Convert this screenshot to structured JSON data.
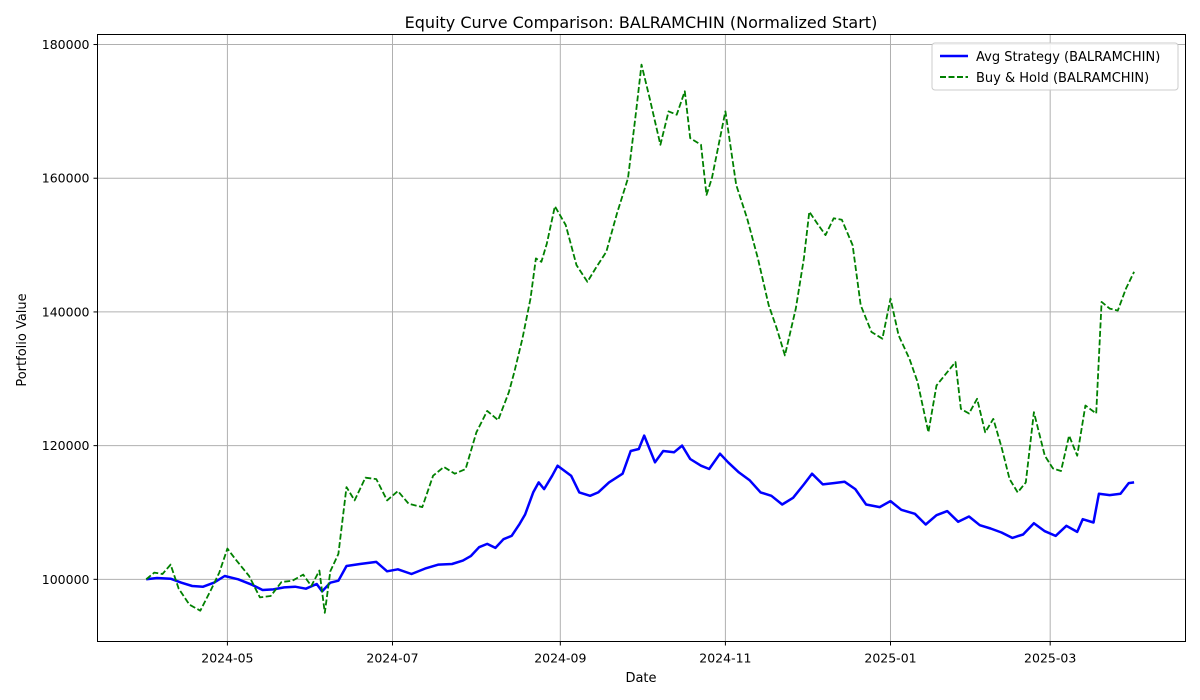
{
  "chart_data": {
    "type": "line",
    "title": "Equity Curve Comparison: BALRAMCHIN (Normalized Start)",
    "xlabel": "Date",
    "ylabel": "Portfolio Value",
    "x_start": "2024-04-01",
    "x_end": "2025-04-01",
    "xlim": [
      "2024-03-14",
      "2025-04-20"
    ],
    "ylim": [
      90700,
      181500
    ],
    "x_ticks": [
      {
        "date": "2024-05-01",
        "label": "2024-05"
      },
      {
        "date": "2024-07-01",
        "label": "2024-07"
      },
      {
        "date": "2024-09-01",
        "label": "2024-09"
      },
      {
        "date": "2024-11-01",
        "label": "2024-11"
      },
      {
        "date": "2025-01-01",
        "label": "2025-01"
      },
      {
        "date": "2025-03-01",
        "label": "2025-03"
      }
    ],
    "y_ticks": [
      {
        "value": 100000,
        "label": "100000"
      },
      {
        "value": 120000,
        "label": "120000"
      },
      {
        "value": 140000,
        "label": "140000"
      },
      {
        "value": 160000,
        "label": "160000"
      },
      {
        "value": 180000,
        "label": "180000"
      }
    ],
    "grid": true,
    "legend_position": "top-right",
    "series": [
      {
        "name": "Avg Strategy (BALRAMCHIN)",
        "color": "#0000ff",
        "style": "solid",
        "points": [
          [
            "2024-04-01",
            100000
          ],
          [
            "2024-04-05",
            100200
          ],
          [
            "2024-04-10",
            100100
          ],
          [
            "2024-04-14",
            99500
          ],
          [
            "2024-04-18",
            99000
          ],
          [
            "2024-04-22",
            98900
          ],
          [
            "2024-04-26",
            99500
          ],
          [
            "2024-04-30",
            100500
          ],
          [
            "2024-05-05",
            100000
          ],
          [
            "2024-05-10",
            99200
          ],
          [
            "2024-05-14",
            98400
          ],
          [
            "2024-05-18",
            98500
          ],
          [
            "2024-05-22",
            98800
          ],
          [
            "2024-05-26",
            98900
          ],
          [
            "2024-05-30",
            98600
          ],
          [
            "2024-06-03",
            99300
          ],
          [
            "2024-06-05",
            98200
          ],
          [
            "2024-06-08",
            99500
          ],
          [
            "2024-06-11",
            99800
          ],
          [
            "2024-06-14",
            102000
          ],
          [
            "2024-06-19",
            102300
          ],
          [
            "2024-06-25",
            102600
          ],
          [
            "2024-06-29",
            101200
          ],
          [
            "2024-07-03",
            101500
          ],
          [
            "2024-07-08",
            100800
          ],
          [
            "2024-07-13",
            101600
          ],
          [
            "2024-07-18",
            102200
          ],
          [
            "2024-07-23",
            102300
          ],
          [
            "2024-07-27",
            102800
          ],
          [
            "2024-07-30",
            103500
          ],
          [
            "2024-08-02",
            104800
          ],
          [
            "2024-08-05",
            105300
          ],
          [
            "2024-08-08",
            104700
          ],
          [
            "2024-08-11",
            106000
          ],
          [
            "2024-08-14",
            106500
          ],
          [
            "2024-08-17",
            108300
          ],
          [
            "2024-08-19",
            109700
          ],
          [
            "2024-08-22",
            113000
          ],
          [
            "2024-08-24",
            114500
          ],
          [
            "2024-08-26",
            113500
          ],
          [
            "2024-08-29",
            115500
          ],
          [
            "2024-08-31",
            117000
          ],
          [
            "2024-09-05",
            115500
          ],
          [
            "2024-09-08",
            113000
          ],
          [
            "2024-09-12",
            112500
          ],
          [
            "2024-09-15",
            113000
          ],
          [
            "2024-09-19",
            114500
          ],
          [
            "2024-09-24",
            115800
          ],
          [
            "2024-09-27",
            119200
          ],
          [
            "2024-09-30",
            119500
          ],
          [
            "2024-10-02",
            121500
          ],
          [
            "2024-10-06",
            117500
          ],
          [
            "2024-10-09",
            119200
          ],
          [
            "2024-10-13",
            119000
          ],
          [
            "2024-10-16",
            120000
          ],
          [
            "2024-10-19",
            118000
          ],
          [
            "2024-10-23",
            117000
          ],
          [
            "2024-10-26",
            116500
          ],
          [
            "2024-10-30",
            118800
          ],
          [
            "2024-11-02",
            117500
          ],
          [
            "2024-11-06",
            116000
          ],
          [
            "2024-11-10",
            114800
          ],
          [
            "2024-11-14",
            113000
          ],
          [
            "2024-11-18",
            112500
          ],
          [
            "2024-11-22",
            111200
          ],
          [
            "2024-11-26",
            112200
          ],
          [
            "2024-11-30",
            114200
          ],
          [
            "2024-12-03",
            115800
          ],
          [
            "2024-12-07",
            114200
          ],
          [
            "2024-12-11",
            114400
          ],
          [
            "2024-12-15",
            114600
          ],
          [
            "2024-12-19",
            113500
          ],
          [
            "2024-12-23",
            111200
          ],
          [
            "2024-12-28",
            110800
          ],
          [
            "2025-01-01",
            111700
          ],
          [
            "2025-01-05",
            110400
          ],
          [
            "2025-01-10",
            109800
          ],
          [
            "2025-01-14",
            108200
          ],
          [
            "2025-01-18",
            109600
          ],
          [
            "2025-01-22",
            110200
          ],
          [
            "2025-01-26",
            108600
          ],
          [
            "2025-01-30",
            109400
          ],
          [
            "2025-02-03",
            108100
          ],
          [
            "2025-02-07",
            107600
          ],
          [
            "2025-02-11",
            107000
          ],
          [
            "2025-02-15",
            106200
          ],
          [
            "2025-02-19",
            106700
          ],
          [
            "2025-02-23",
            108400
          ],
          [
            "2025-02-27",
            107200
          ],
          [
            "2025-03-03",
            106500
          ],
          [
            "2025-03-07",
            108000
          ],
          [
            "2025-03-11",
            107100
          ],
          [
            "2025-03-13",
            109000
          ],
          [
            "2025-03-17",
            108500
          ],
          [
            "2025-03-19",
            112800
          ],
          [
            "2025-03-23",
            112600
          ],
          [
            "2025-03-27",
            112800
          ],
          [
            "2025-03-30",
            114400
          ],
          [
            "2025-04-01",
            114500
          ]
        ]
      },
      {
        "name": "Buy & Hold (BALRAMCHIN)",
        "color": "#008000",
        "style": "dashed",
        "points": [
          [
            "2024-04-01",
            100000
          ],
          [
            "2024-04-04",
            101000
          ],
          [
            "2024-04-07",
            100800
          ],
          [
            "2024-04-10",
            102200
          ],
          [
            "2024-04-13",
            98600
          ],
          [
            "2024-04-17",
            96200
          ],
          [
            "2024-04-21",
            95300
          ],
          [
            "2024-04-25",
            98500
          ],
          [
            "2024-04-28",
            101000
          ],
          [
            "2024-05-01",
            104600
          ],
          [
            "2024-05-04",
            103000
          ],
          [
            "2024-05-09",
            100500
          ],
          [
            "2024-05-13",
            97300
          ],
          [
            "2024-05-17",
            97500
          ],
          [
            "2024-05-21",
            99600
          ],
          [
            "2024-05-25",
            99800
          ],
          [
            "2024-05-29",
            100700
          ],
          [
            "2024-06-01",
            99000
          ],
          [
            "2024-06-04",
            101300
          ],
          [
            "2024-06-06",
            95000
          ],
          [
            "2024-06-08",
            101200
          ],
          [
            "2024-06-11",
            103800
          ],
          [
            "2024-06-14",
            113800
          ],
          [
            "2024-06-17",
            111800
          ],
          [
            "2024-06-21",
            115200
          ],
          [
            "2024-06-25",
            115000
          ],
          [
            "2024-06-29",
            111800
          ],
          [
            "2024-07-03",
            113200
          ],
          [
            "2024-07-07",
            111300
          ],
          [
            "2024-07-12",
            110800
          ],
          [
            "2024-07-16",
            115500
          ],
          [
            "2024-07-20",
            116800
          ],
          [
            "2024-07-24",
            115800
          ],
          [
            "2024-07-28",
            116500
          ],
          [
            "2024-08-01",
            122000
          ],
          [
            "2024-08-05",
            125200
          ],
          [
            "2024-08-09",
            123800
          ],
          [
            "2024-08-13",
            128000
          ],
          [
            "2024-08-15",
            131000
          ],
          [
            "2024-08-18",
            136000
          ],
          [
            "2024-08-21",
            142000
          ],
          [
            "2024-08-23",
            148000
          ],
          [
            "2024-08-25",
            147500
          ],
          [
            "2024-08-27",
            150200
          ],
          [
            "2024-08-30",
            155800
          ],
          [
            "2024-09-03",
            153000
          ],
          [
            "2024-09-07",
            147000
          ],
          [
            "2024-09-11",
            144500
          ],
          [
            "2024-09-14",
            146500
          ],
          [
            "2024-09-18",
            149000
          ],
          [
            "2024-09-22",
            154800
          ],
          [
            "2024-09-26",
            160000
          ],
          [
            "2024-09-29",
            170000
          ],
          [
            "2024-10-01",
            177000
          ],
          [
            "2024-10-04",
            172000
          ],
          [
            "2024-10-08",
            165000
          ],
          [
            "2024-10-11",
            170000
          ],
          [
            "2024-10-14",
            169500
          ],
          [
            "2024-10-17",
            173000
          ],
          [
            "2024-10-19",
            166000
          ],
          [
            "2024-10-23",
            165000
          ],
          [
            "2024-10-25",
            157500
          ],
          [
            "2024-10-27",
            160000
          ],
          [
            "2024-10-30",
            166000
          ],
          [
            "2024-11-01",
            170000
          ],
          [
            "2024-11-05",
            159000
          ],
          [
            "2024-11-09",
            154000
          ],
          [
            "2024-11-13",
            148000
          ],
          [
            "2024-11-17",
            141000
          ],
          [
            "2024-11-20",
            137500
          ],
          [
            "2024-11-23",
            133500
          ],
          [
            "2024-11-27",
            140500
          ],
          [
            "2024-11-30",
            148000
          ],
          [
            "2024-12-02",
            155000
          ],
          [
            "2024-12-05",
            153200
          ],
          [
            "2024-12-08",
            151500
          ],
          [
            "2024-12-11",
            154000
          ],
          [
            "2024-12-14",
            153800
          ],
          [
            "2024-12-18",
            150000
          ],
          [
            "2024-12-21",
            141000
          ],
          [
            "2024-12-25",
            137000
          ],
          [
            "2024-12-29",
            136000
          ],
          [
            "2025-01-01",
            142000
          ],
          [
            "2025-01-04",
            136500
          ],
          [
            "2025-01-08",
            133000
          ],
          [
            "2025-01-11",
            129500
          ],
          [
            "2025-01-15",
            122000
          ],
          [
            "2025-01-18",
            129000
          ],
          [
            "2025-01-22",
            131000
          ],
          [
            "2025-01-25",
            132500
          ],
          [
            "2025-01-27",
            125500
          ],
          [
            "2025-01-30",
            124800
          ],
          [
            "2025-02-02",
            127000
          ],
          [
            "2025-02-05",
            122000
          ],
          [
            "2025-02-08",
            124000
          ],
          [
            "2025-02-11",
            119800
          ],
          [
            "2025-02-14",
            115000
          ],
          [
            "2025-02-17",
            113000
          ],
          [
            "2025-02-20",
            114500
          ],
          [
            "2025-02-23",
            125000
          ],
          [
            "2025-02-27",
            118500
          ],
          [
            "2025-03-02",
            116600
          ],
          [
            "2025-03-05",
            116200
          ],
          [
            "2025-03-08",
            121500
          ],
          [
            "2025-03-11",
            118500
          ],
          [
            "2025-03-14",
            126000
          ],
          [
            "2025-03-18",
            124800
          ],
          [
            "2025-03-20",
            141500
          ],
          [
            "2025-03-23",
            140500
          ],
          [
            "2025-03-26",
            140200
          ],
          [
            "2025-03-29",
            143500
          ],
          [
            "2025-04-01",
            146000
          ]
        ]
      }
    ]
  }
}
